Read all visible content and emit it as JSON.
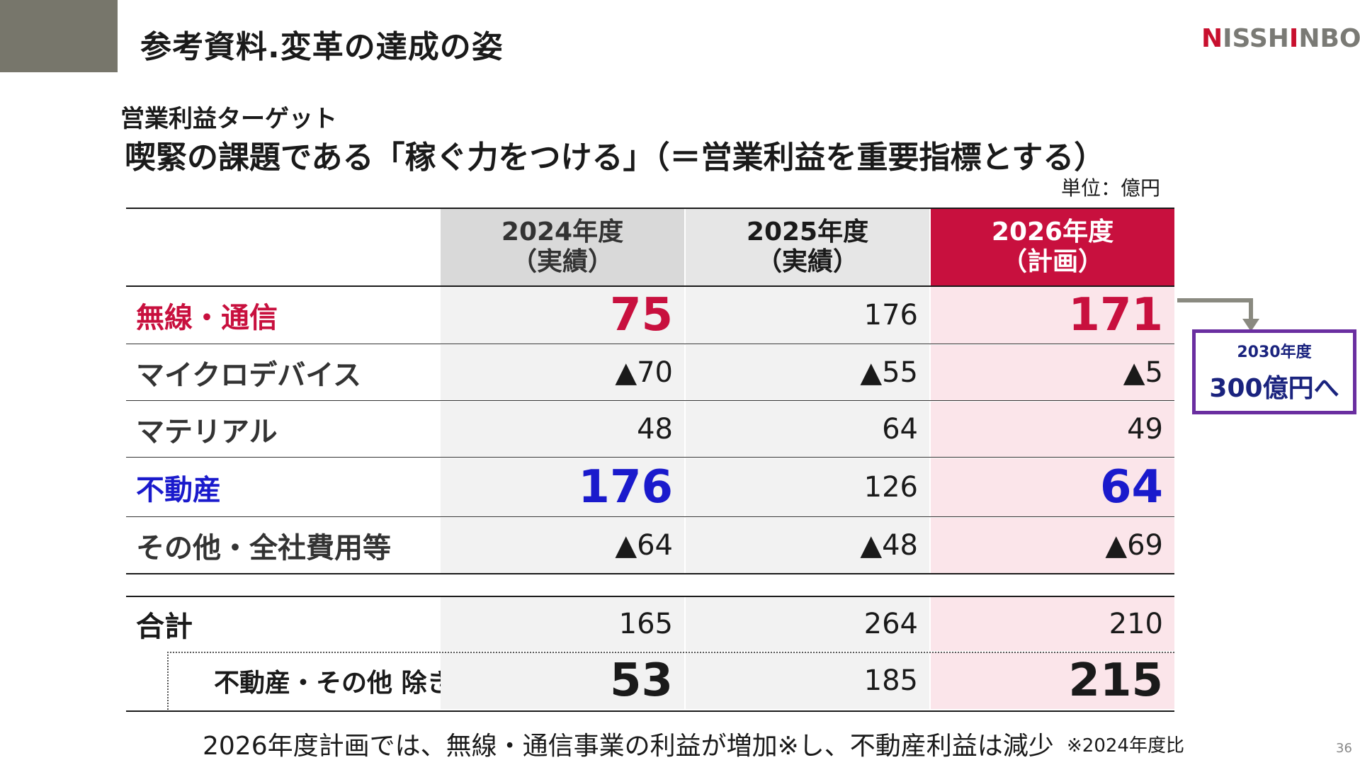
{
  "header": {
    "title": "参考資料.変革の達成の姿",
    "logo_red_1": "N",
    "logo_gray_1": "ISSH",
    "logo_red_2": "I",
    "logo_gray_2": "NBO"
  },
  "subtitle_small": "営業利益ターゲット",
  "subtitle_large": "喫緊の課題である「稼ぐ力をつける」（＝営業利益を重要指標とする）",
  "unit": "単位：億円",
  "table": {
    "headers": {
      "y2024_line1": "2024年度",
      "y2024_line2": "（実績）",
      "y2025_line1": "2025年度",
      "y2025_line2": "（実績）",
      "y2026_line1": "2026年度",
      "y2026_line2": "（計画）"
    },
    "rows": [
      {
        "label": "無線・通信",
        "y2024": "75",
        "y2025": "176",
        "y2026": "171"
      },
      {
        "label": "マイクロデバイス",
        "y2024": "▲70",
        "y2025": "▲55",
        "y2026": "▲5"
      },
      {
        "label": "マテリアル",
        "y2024": "48",
        "y2025": "64",
        "y2026": "49"
      },
      {
        "label": "不動産",
        "y2024": "176",
        "y2025": "126",
        "y2026": "64"
      },
      {
        "label": "その他・全社費用等",
        "y2024": "▲64",
        "y2025": "▲48",
        "y2026": "▲69"
      }
    ],
    "total": {
      "label": "合計",
      "y2024": "165",
      "y2025": "264",
      "y2026": "210"
    },
    "excluding": {
      "label": "不動産・その他 除き",
      "y2024": "53",
      "y2025": "185",
      "y2026": "215"
    }
  },
  "callout": {
    "year": "2030年度",
    "value": "300億円へ"
  },
  "footer": {
    "note": "2026年度計画では、無線・通信事業の利益が増加※し、不動産利益は減少",
    "small_note": "※2024年度比",
    "page_number": "36"
  },
  "colors": {
    "accent_red": "#c8103e",
    "accent_blue": "#1a1acc",
    "callout_border": "#6a2ea0",
    "title_block": "#77766b"
  }
}
